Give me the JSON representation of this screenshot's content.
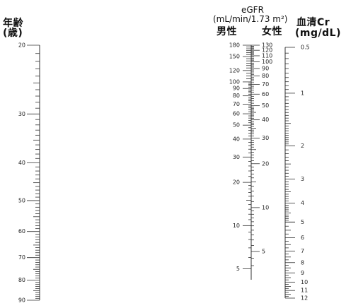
{
  "headers": {
    "age_title": "年齢",
    "age_unit": "(歳)",
    "egfr_title": "eGFR",
    "egfr_unit": "(mL/min/1.73 m²)",
    "male": "男性",
    "female": "女性",
    "scr_title": "血清Cr",
    "scr_unit": "(mg/dL)"
  },
  "scales": {
    "age": {
      "min": 20,
      "max": 90,
      "labels": [
        "20",
        "30",
        "40",
        "50",
        "60",
        "70",
        "80",
        "90"
      ]
    },
    "egfr_male": {
      "min": 4.2,
      "max": 180,
      "labels": [
        "180",
        "150",
        "120",
        "100",
        "90",
        "80",
        "70",
        "60",
        "50",
        "40",
        "30",
        "20",
        "10",
        "5"
      ]
    },
    "egfr_female": {
      "min": 3.2,
      "max": 130,
      "labels": [
        "130",
        "120",
        "110",
        "100",
        "90",
        "80",
        "70",
        "60",
        "50",
        "40",
        "30",
        "20",
        "10",
        "5"
      ]
    },
    "serum_cr": {
      "min": 0.5,
      "max": 12,
      "labels": [
        "0.5",
        "1",
        "2",
        "3",
        "4",
        "5",
        "6",
        "7",
        "8",
        "9",
        "10",
        "11",
        "12"
      ]
    }
  }
}
